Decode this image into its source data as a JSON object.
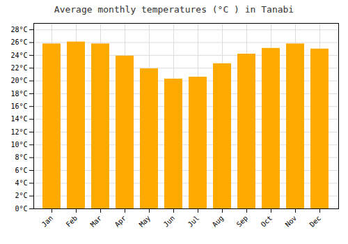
{
  "chart_data": {
    "type": "bar",
    "title": "Average monthly temperatures (°C ) in Tanabi",
    "categories": [
      "Jan",
      "Feb",
      "Mar",
      "Apr",
      "May",
      "Jun",
      "Jul",
      "Aug",
      "Sep",
      "Oct",
      "Nov",
      "Dec"
    ],
    "values": [
      25.8,
      26.1,
      25.8,
      23.9,
      21.9,
      20.3,
      20.6,
      22.7,
      24.2,
      25.1,
      25.8,
      25.0
    ],
    "color": "#FFAA00",
    "ylim": [
      0,
      29
    ],
    "yticks": [
      {
        "value": 0,
        "label": "0°C"
      },
      {
        "value": 2,
        "label": "2°C"
      },
      {
        "value": 4,
        "label": "4°C"
      },
      {
        "value": 6,
        "label": "6°C"
      },
      {
        "value": 8,
        "label": "8°C"
      },
      {
        "value": 10,
        "label": "10°C"
      },
      {
        "value": 12,
        "label": "12°C"
      },
      {
        "value": 14,
        "label": "14°C"
      },
      {
        "value": 16,
        "label": "16°C"
      },
      {
        "value": 18,
        "label": "18°C"
      },
      {
        "value": 20,
        "label": "20°C"
      },
      {
        "value": 22,
        "label": "22°C"
      },
      {
        "value": 24,
        "label": "24°C"
      },
      {
        "value": 26,
        "label": "26°C"
      },
      {
        "value": 28,
        "label": "28°C"
      }
    ],
    "grid": true
  }
}
